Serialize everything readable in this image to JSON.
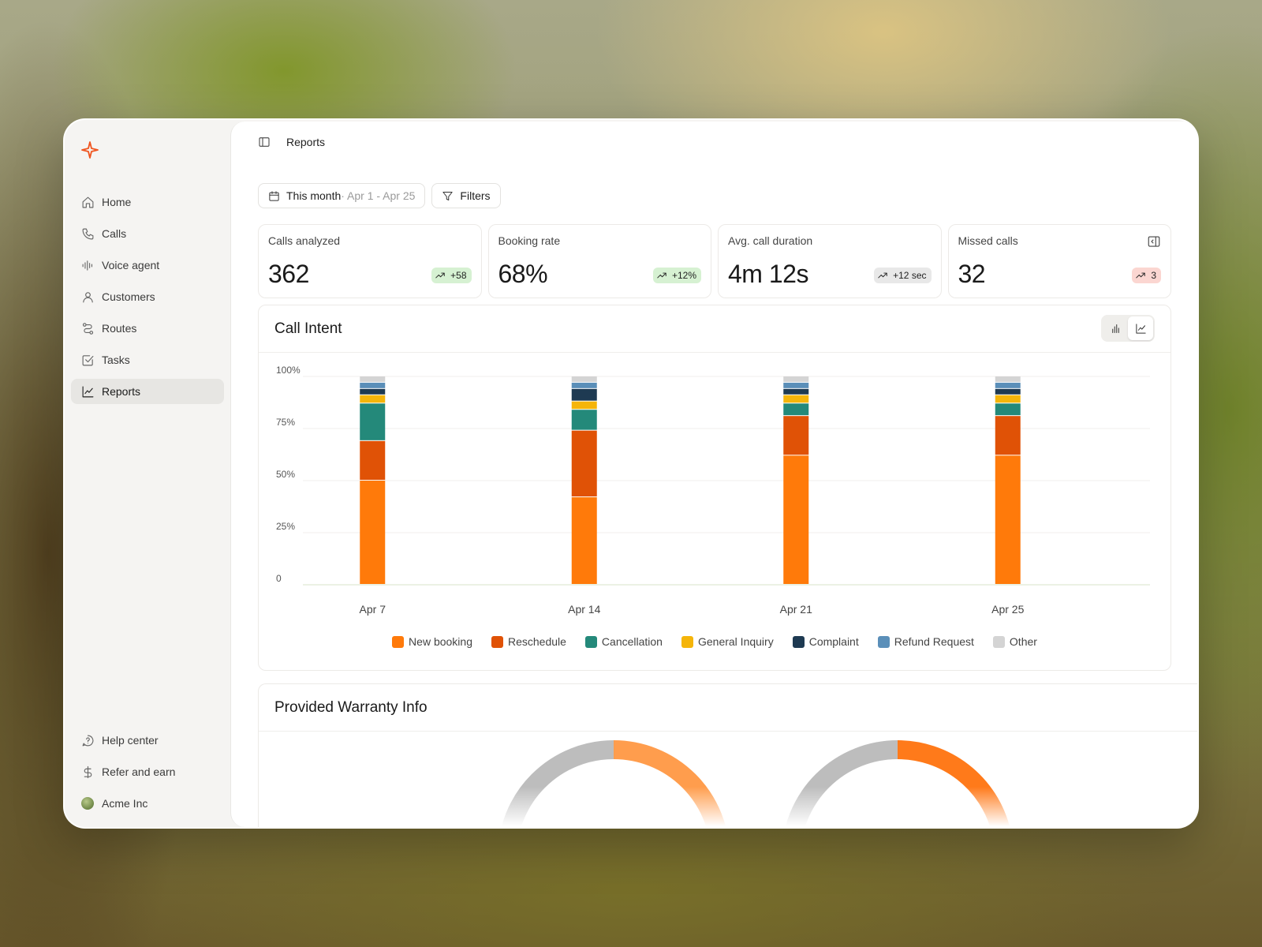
{
  "sidebar": {
    "nav": [
      {
        "label": "Home",
        "icon": "home-icon"
      },
      {
        "label": "Calls",
        "icon": "phone-icon"
      },
      {
        "label": "Voice agent",
        "icon": "waveform-icon"
      },
      {
        "label": "Customers",
        "icon": "user-icon"
      },
      {
        "label": "Routes",
        "icon": "route-icon"
      },
      {
        "label": "Tasks",
        "icon": "checkbox-icon"
      },
      {
        "label": "Reports",
        "icon": "chart-line-icon",
        "active": true
      }
    ],
    "bottom": [
      {
        "label": "Help center",
        "icon": "help-icon"
      },
      {
        "label": "Refer and earn",
        "icon": "dollar-icon"
      },
      {
        "label": "Acme Inc",
        "icon": "avatar"
      }
    ]
  },
  "header": {
    "title": "Reports"
  },
  "toolbar": {
    "date_label": "This month",
    "date_range": " · Apr 1 - Apr 25",
    "filters_label": "Filters"
  },
  "kpis": [
    {
      "label": "Calls analyzed",
      "value": "362",
      "delta": "+58",
      "tone": "green"
    },
    {
      "label": "Booking rate",
      "value": "68%",
      "delta": "+12%",
      "tone": "green"
    },
    {
      "label": "Avg. call duration",
      "value": "4m 12s",
      "delta": "+12 sec",
      "tone": "gray"
    },
    {
      "label": "Missed calls",
      "value": "32",
      "delta": "3",
      "tone": "red"
    }
  ],
  "call_intent": {
    "title": "Call Intent"
  },
  "warranty": {
    "title": "Provided Warranty Info",
    "donuts": [
      {
        "fraction": 0.5,
        "color": "#ff9d4d"
      },
      {
        "fraction": 0.42,
        "color": "#ff7a1a"
      }
    ]
  },
  "chart_data": {
    "type": "bar",
    "stacked": true,
    "categories": [
      "Apr 7",
      "Apr 14",
      "Apr 21",
      "Apr 25"
    ],
    "y_ticks": [
      "0",
      "25%",
      "50%",
      "75%",
      "100%"
    ],
    "ylim": [
      0,
      100
    ],
    "series": [
      {
        "name": "New booking",
        "color": "#ff7a0a",
        "values": [
          50,
          42,
          62,
          62
        ]
      },
      {
        "name": "Reschedule",
        "color": "#e05206",
        "values": [
          19,
          32,
          19,
          19
        ]
      },
      {
        "name": "Cancellation",
        "color": "#24897a",
        "values": [
          18,
          10,
          6,
          6
        ]
      },
      {
        "name": "General Inquiry",
        "color": "#f5b50a",
        "values": [
          4,
          4,
          4,
          4
        ]
      },
      {
        "name": "Complaint",
        "color": "#1e3a52",
        "values": [
          3,
          6,
          3,
          3
        ]
      },
      {
        "name": "Refund Request",
        "color": "#5b8fb9",
        "values": [
          3,
          3,
          3,
          3
        ]
      },
      {
        "name": "Other",
        "color": "#d4d4d4",
        "values": [
          3,
          3,
          3,
          3
        ]
      }
    ]
  }
}
